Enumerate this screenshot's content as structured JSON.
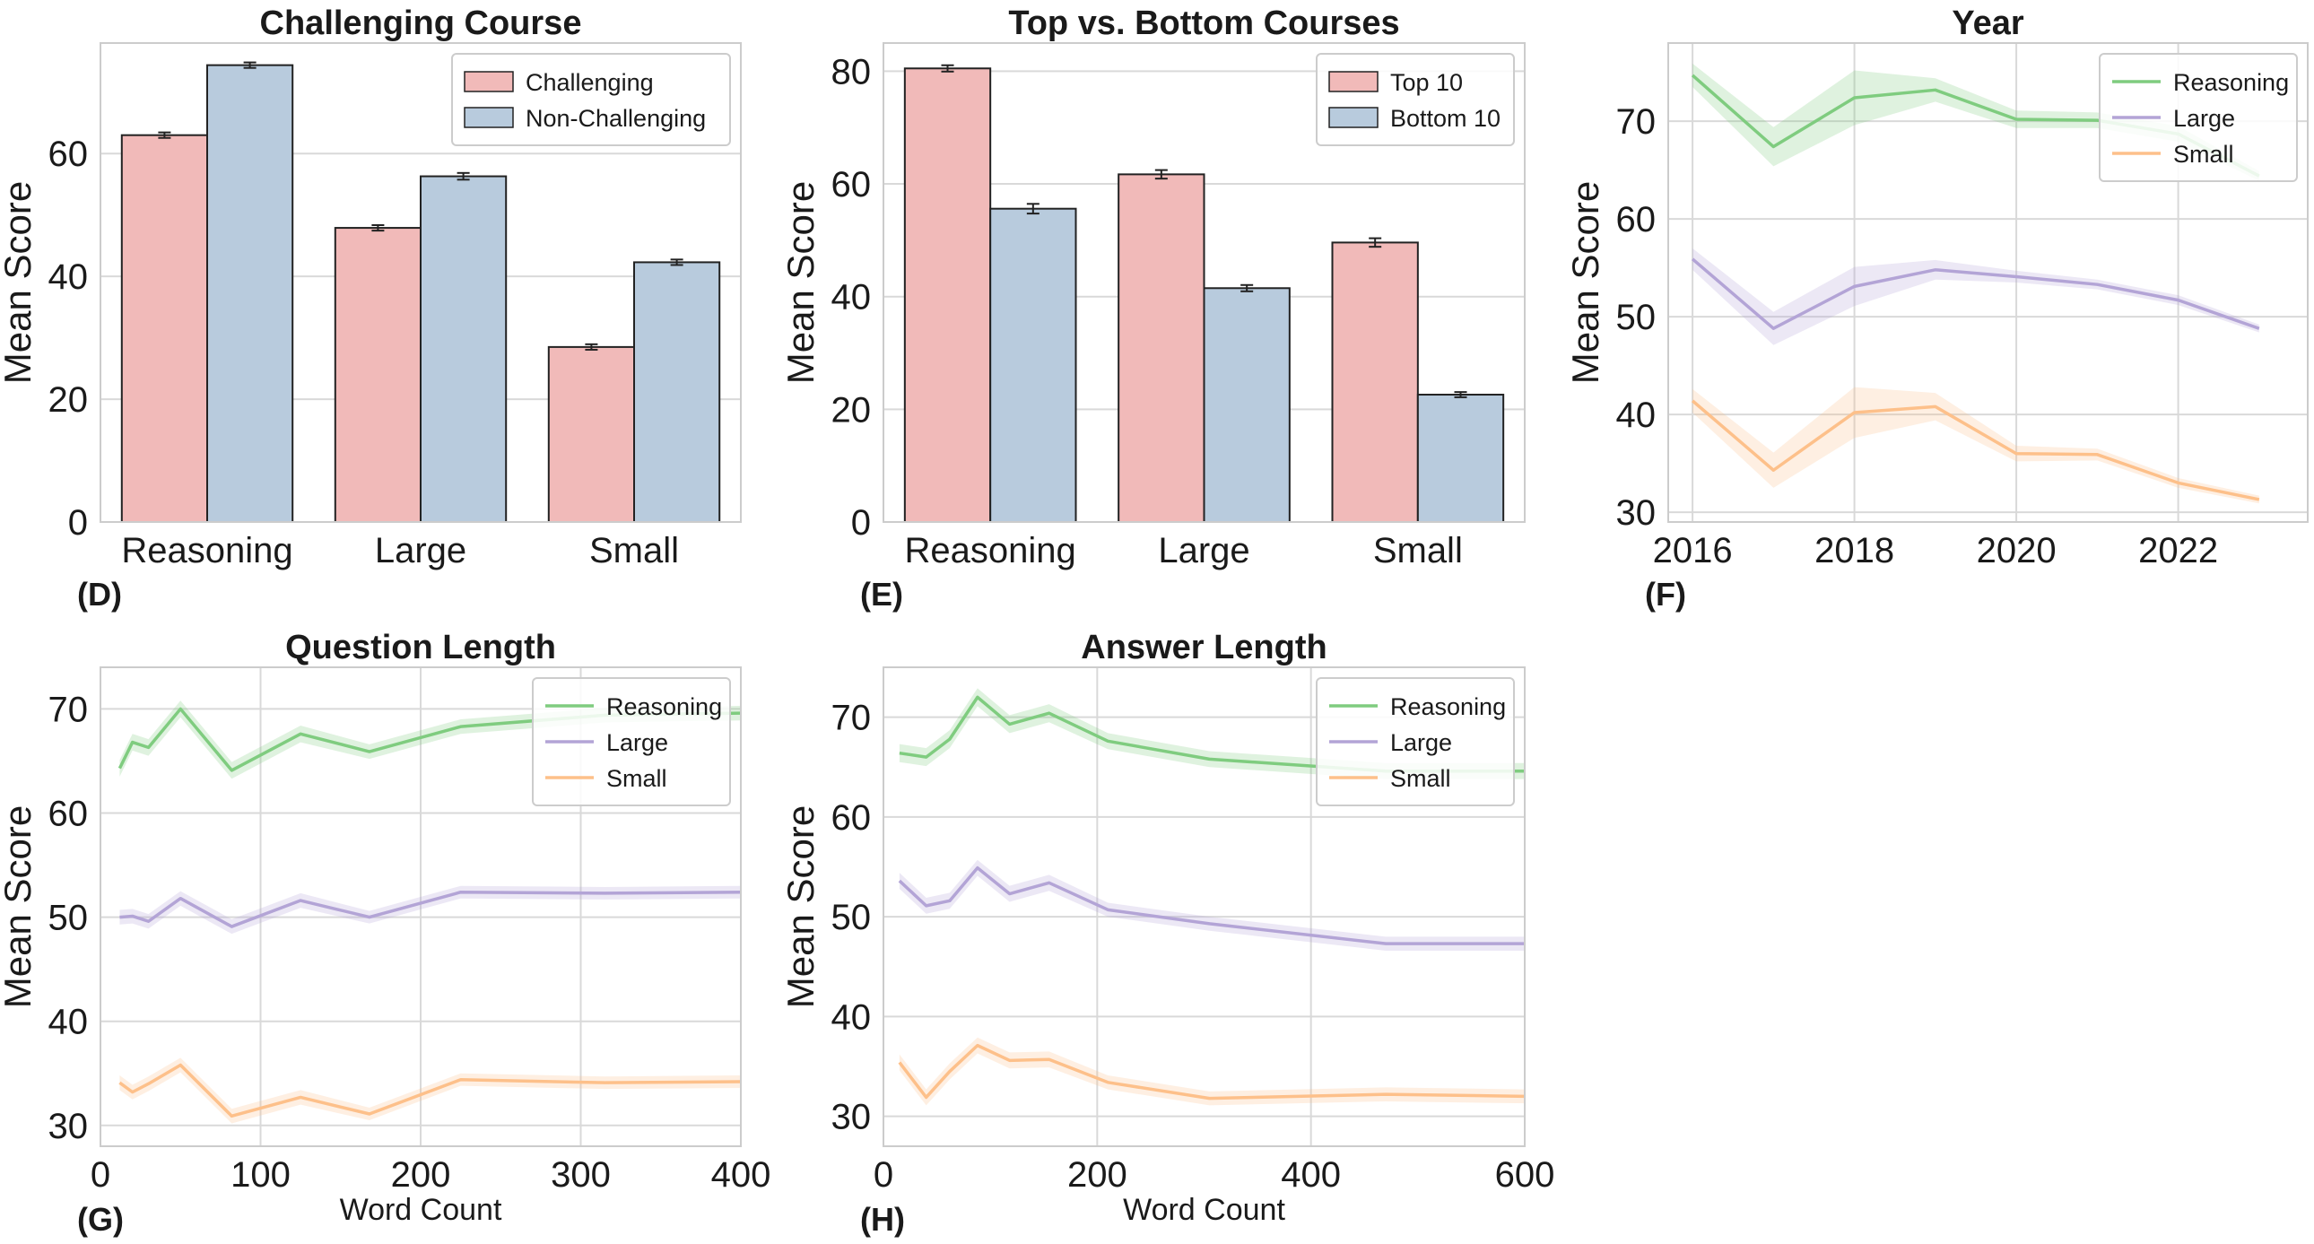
{
  "chart_data": [
    {
      "id": "D",
      "panel_label": "(D)",
      "type": "bar",
      "title": "Challenging Course",
      "xlabel": "",
      "ylabel": "Mean Score",
      "ylim": [
        0,
        78
      ],
      "yticks": [
        0,
        20,
        40,
        60
      ],
      "categories": [
        "Reasoning",
        "Large",
        "Small"
      ],
      "legend_position": "top-right",
      "series": [
        {
          "name": "Challenging",
          "color": "#f1bab9",
          "values": [
            63.0,
            47.9,
            28.5
          ],
          "errors": [
            0.3,
            0.3,
            0.3
          ]
        },
        {
          "name": "Non-Challenging",
          "color": "#b8cbdd",
          "values": [
            74.4,
            56.3,
            42.3
          ],
          "errors": [
            0.3,
            0.4,
            0.3
          ]
        }
      ]
    },
    {
      "id": "E",
      "panel_label": "(E)",
      "type": "bar",
      "title": "Top vs. Bottom Courses",
      "xlabel": "",
      "ylabel": "Mean Score",
      "ylim": [
        0,
        85
      ],
      "yticks": [
        0,
        20,
        40,
        60,
        80
      ],
      "categories": [
        "Reasoning",
        "Large",
        "Small"
      ],
      "legend_position": "top-right",
      "series": [
        {
          "name": "Top 10",
          "color": "#f1bab9",
          "values": [
            80.5,
            61.7,
            49.6
          ],
          "errors": [
            0.4,
            0.6,
            0.6
          ]
        },
        {
          "name": "Bottom 10",
          "color": "#b8cbdd",
          "values": [
            55.6,
            41.5,
            22.6
          ],
          "errors": [
            0.7,
            0.4,
            0.3
          ]
        }
      ]
    },
    {
      "id": "F",
      "panel_label": "(F)",
      "type": "line",
      "title": "Year",
      "xlabel": "",
      "ylabel": "Mean Score",
      "xlim": [
        2015.7,
        2023.6
      ],
      "ylim": [
        29,
        78
      ],
      "xticks": [
        2016,
        2018,
        2020,
        2022
      ],
      "yticks": [
        30,
        40,
        50,
        60,
        70
      ],
      "legend_position": "top-right",
      "series": [
        {
          "name": "Reasoning",
          "color": "#7fcc7f",
          "x": [
            2016,
            2017,
            2018,
            2019,
            2020,
            2021,
            2022,
            2023
          ],
          "y": [
            74.7,
            67.4,
            72.4,
            73.2,
            70.2,
            70.1,
            68.7,
            64.4
          ],
          "ci": [
            1.2,
            2.0,
            2.8,
            1.2,
            0.9,
            0.8,
            0.8,
            0.5
          ]
        },
        {
          "name": "Large",
          "color": "#b3a4d6",
          "x": [
            2016,
            2017,
            2018,
            2019,
            2020,
            2021,
            2022,
            2023
          ],
          "y": [
            55.9,
            48.8,
            53.1,
            54.8,
            54.1,
            53.3,
            51.7,
            48.8
          ],
          "ci": [
            1.1,
            1.7,
            2.0,
            1.0,
            0.6,
            0.5,
            0.5,
            0.4
          ]
        },
        {
          "name": "Small",
          "color": "#fdc08a",
          "x": [
            2016,
            2017,
            2018,
            2019,
            2020,
            2021,
            2022,
            2023
          ],
          "y": [
            41.4,
            34.3,
            40.2,
            40.8,
            36.0,
            35.9,
            33.0,
            31.3
          ],
          "ci": [
            1.2,
            1.8,
            2.6,
            1.4,
            0.8,
            0.6,
            0.5,
            0.4
          ]
        }
      ]
    },
    {
      "id": "G",
      "panel_label": "(G)",
      "type": "line",
      "title": "Question Length",
      "xlabel": "Word Count",
      "ylabel": "Mean Score",
      "xlim": [
        0,
        400
      ],
      "ylim": [
        28,
        74
      ],
      "xticks": [
        0,
        100,
        200,
        300,
        400
      ],
      "yticks": [
        30,
        40,
        50,
        60,
        70
      ],
      "legend_position": "top-right",
      "series": [
        {
          "name": "Reasoning",
          "color": "#7fcc7f",
          "x": [
            12,
            20,
            30,
            50,
            82,
            125,
            168,
            225,
            315,
            400
          ],
          "y": [
            64.3,
            66.8,
            66.3,
            70.0,
            64.1,
            67.6,
            65.9,
            68.3,
            69.4,
            69.6
          ],
          "ci": [
            0.8,
            0.8,
            0.8,
            0.8,
            0.8,
            0.8,
            0.7,
            0.7,
            0.7,
            0.7
          ]
        },
        {
          "name": "Large",
          "color": "#b3a4d6",
          "x": [
            12,
            20,
            30,
            50,
            82,
            125,
            168,
            225,
            315,
            400
          ],
          "y": [
            50.0,
            50.1,
            49.6,
            51.8,
            49.1,
            51.6,
            50.0,
            52.4,
            52.3,
            52.4
          ],
          "ci": [
            0.7,
            0.7,
            0.7,
            0.7,
            0.7,
            0.7,
            0.6,
            0.6,
            0.6,
            0.6
          ]
        },
        {
          "name": "Small",
          "color": "#fdc08a",
          "x": [
            12,
            20,
            30,
            50,
            82,
            125,
            168,
            225,
            315,
            400
          ],
          "y": [
            34.1,
            33.2,
            34.0,
            35.8,
            30.9,
            32.7,
            31.1,
            34.4,
            34.1,
            34.2
          ],
          "ci": [
            0.7,
            0.7,
            0.7,
            0.7,
            0.7,
            0.7,
            0.6,
            0.6,
            0.6,
            0.6
          ]
        }
      ]
    },
    {
      "id": "H",
      "panel_label": "(H)",
      "type": "line",
      "title": "Answer Length",
      "xlabel": "Word Count",
      "ylabel": "Mean Score",
      "xlim": [
        0,
        600
      ],
      "ylim": [
        27,
        75
      ],
      "xticks": [
        0,
        200,
        400,
        600
      ],
      "yticks": [
        30,
        40,
        50,
        60,
        70
      ],
      "legend_position": "top-right",
      "series": [
        {
          "name": "Reasoning",
          "color": "#7fcc7f",
          "x": [
            15,
            40,
            62,
            88,
            118,
            155,
            210,
            305,
            470,
            600
          ],
          "y": [
            66.4,
            66.0,
            67.8,
            72.0,
            69.3,
            70.4,
            67.6,
            65.8,
            64.6,
            64.6
          ],
          "ci": [
            0.9,
            0.9,
            0.9,
            0.9,
            0.9,
            0.9,
            0.8,
            0.8,
            0.8,
            0.8
          ]
        },
        {
          "name": "Large",
          "color": "#b3a4d6",
          "x": [
            15,
            40,
            62,
            88,
            118,
            155,
            210,
            305,
            470,
            600
          ],
          "y": [
            53.6,
            51.1,
            51.6,
            54.9,
            52.3,
            53.4,
            50.7,
            49.3,
            47.3,
            47.3
          ],
          "ci": [
            0.8,
            0.8,
            0.8,
            0.8,
            0.8,
            0.8,
            0.7,
            0.7,
            0.7,
            0.7
          ]
        },
        {
          "name": "Small",
          "color": "#fdc08a",
          "x": [
            15,
            40,
            62,
            88,
            118,
            155,
            210,
            305,
            470,
            600
          ],
          "y": [
            35.4,
            31.9,
            34.5,
            37.1,
            35.6,
            35.7,
            33.4,
            31.8,
            32.2,
            32.0
          ],
          "ci": [
            0.8,
            0.8,
            0.8,
            0.8,
            0.8,
            0.8,
            0.7,
            0.7,
            0.7,
            0.7
          ]
        }
      ]
    }
  ]
}
